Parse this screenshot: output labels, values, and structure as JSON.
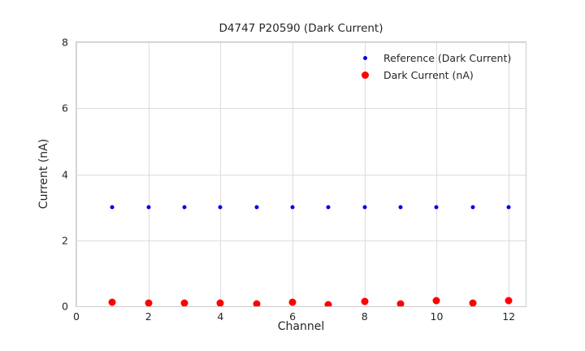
{
  "chart_data": {
    "type": "scatter",
    "title": "D4747 P20590 (Dark Current)",
    "xlabel": "Channel",
    "ylabel": "Current (nA)",
    "xlim": [
      0,
      12.47
    ],
    "ylim": [
      0,
      8
    ],
    "xticks": [
      0,
      2,
      4,
      6,
      8,
      10,
      12
    ],
    "yticks": [
      0,
      2,
      4,
      6,
      8
    ],
    "grid": true,
    "legend_position": "upper-right-inside",
    "legend_frame": false,
    "series": [
      {
        "name": "Reference (Dark Current)",
        "color": "#0000ee",
        "marker_px": 5,
        "x": [
          1,
          2,
          3,
          4,
          5,
          6,
          7,
          8,
          9,
          10,
          11,
          12
        ],
        "y": [
          3,
          3,
          3,
          3,
          3,
          3,
          3,
          3,
          3,
          3,
          3,
          3
        ]
      },
      {
        "name": "Dark Current (nA)",
        "color": "#ff0000",
        "marker_px": 9,
        "x": [
          1,
          2,
          3,
          4,
          5,
          6,
          7,
          8,
          9,
          10,
          11,
          12
        ],
        "y": [
          0.12,
          0.1,
          0.09,
          0.1,
          0.07,
          0.13,
          0.06,
          0.15,
          0.07,
          0.17,
          0.09,
          0.18
        ]
      }
    ],
    "colors": {
      "background": "#ffffff",
      "grid": "#dcdcdc",
      "spine": "#cccccc",
      "text": "#262626"
    }
  }
}
